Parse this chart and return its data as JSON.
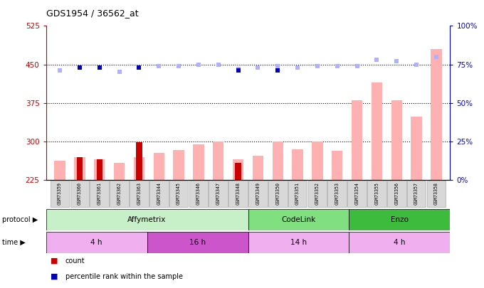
{
  "title": "GDS1954 / 36562_at",
  "samples": [
    "GSM73359",
    "GSM73360",
    "GSM73361",
    "GSM73362",
    "GSM73363",
    "GSM73344",
    "GSM73345",
    "GSM73346",
    "GSM73347",
    "GSM73348",
    "GSM73349",
    "GSM73350",
    "GSM73351",
    "GSM73352",
    "GSM73353",
    "GSM73354",
    "GSM73355",
    "GSM73356",
    "GSM73357",
    "GSM73358"
  ],
  "values_absent": [
    262,
    270,
    265,
    258,
    270,
    278,
    283,
    295,
    300,
    265,
    272,
    300,
    285,
    300,
    282,
    380,
    415,
    380,
    348,
    480
  ],
  "counts": [
    0,
    270,
    265,
    0,
    298,
    0,
    0,
    0,
    0,
    258,
    0,
    0,
    0,
    0,
    0,
    0,
    0,
    0,
    0,
    0
  ],
  "ranks_absent_pct": [
    71,
    73,
    73,
    70,
    73,
    74,
    74,
    75,
    75,
    72,
    73,
    74,
    73,
    74,
    74,
    74,
    78,
    77,
    75,
    80
  ],
  "percentile_ranks_pct": [
    0,
    73,
    73,
    0,
    73,
    0,
    0,
    0,
    0,
    71,
    0,
    71,
    0,
    0,
    0,
    0,
    0,
    0,
    0,
    0
  ],
  "protocol_groups": [
    {
      "label": "Affymetrix",
      "start": 0,
      "end": 10,
      "color": "#c8f0c8"
    },
    {
      "label": "CodeLink",
      "start": 10,
      "end": 15,
      "color": "#80e080"
    },
    {
      "label": "Enzo",
      "start": 15,
      "end": 20,
      "color": "#3dbb3d"
    }
  ],
  "time_groups": [
    {
      "label": "4 h",
      "start": 0,
      "end": 5,
      "color": "#f0b0f0"
    },
    {
      "label": "16 h",
      "start": 5,
      "end": 10,
      "color": "#cc55cc"
    },
    {
      "label": "14 h",
      "start": 10,
      "end": 15,
      "color": "#f0b0f0"
    },
    {
      "label": "4 h",
      "start": 15,
      "end": 20,
      "color": "#f0b0f0"
    }
  ],
  "ylim_left": [
    225,
    525
  ],
  "ylim_right": [
    0,
    100
  ],
  "yticks_left": [
    225,
    300,
    375,
    450,
    525
  ],
  "yticks_right": [
    0,
    25,
    50,
    75,
    100
  ],
  "bar_color_absent": "#ffb0b0",
  "bar_color_count": "#cc0000",
  "dot_color_rank_absent": "#b0b0ff",
  "dot_color_percentile": "#0000bb",
  "left_axis_color": "#cc0000",
  "right_axis_color": "#0000cc",
  "grid_lines": [
    300,
    375,
    450
  ]
}
